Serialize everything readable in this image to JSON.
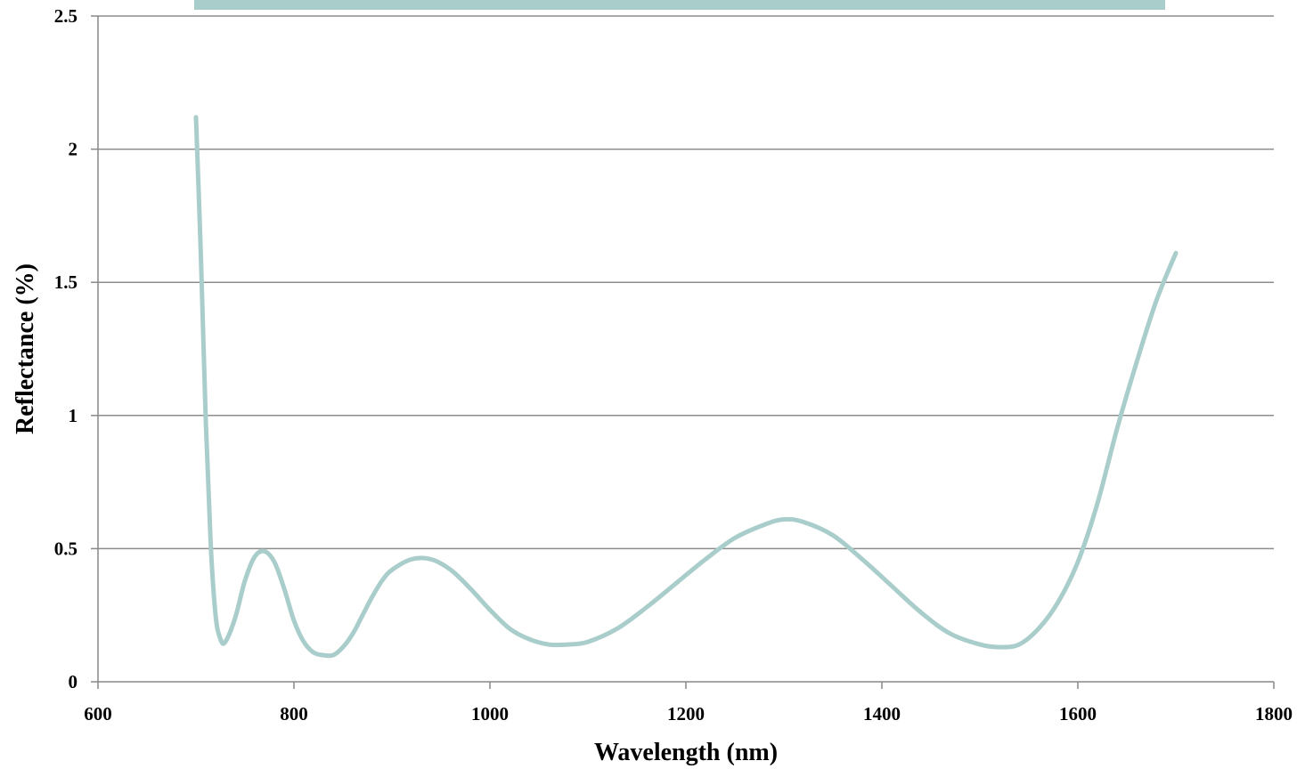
{
  "chart_data": {
    "type": "line",
    "title": "",
    "xlabel": "Wavelength (nm)",
    "ylabel": "Reflectance (%)",
    "xlim": [
      600,
      1800
    ],
    "ylim": [
      0,
      2.5
    ],
    "x_ticks": [
      "600",
      "800",
      "1000",
      "1200",
      "1400",
      "1600",
      "1800"
    ],
    "y_ticks": [
      "0",
      "0.5",
      "1",
      "1.5",
      "2",
      "2.5"
    ],
    "grid": "horizontal",
    "legend": "top band (no readable text)",
    "series": [
      {
        "color": "#a9cdcb",
        "x": [
          700,
          705,
          710,
          715,
          720,
          725,
          730,
          740,
          750,
          760,
          770,
          780,
          790,
          800,
          810,
          820,
          830,
          840,
          850,
          860,
          870,
          880,
          890,
          900,
          920,
          940,
          960,
          980,
          1000,
          1020,
          1040,
          1060,
          1080,
          1100,
          1130,
          1160,
          1190,
          1220,
          1250,
          1280,
          1300,
          1320,
          1350,
          1380,
          1410,
          1440,
          1470,
          1500,
          1520,
          1540,
          1560,
          1580,
          1600,
          1620,
          1640,
          1660,
          1680,
          1700
        ],
        "y": [
          2.12,
          1.6,
          0.98,
          0.52,
          0.25,
          0.16,
          0.15,
          0.24,
          0.38,
          0.47,
          0.49,
          0.45,
          0.35,
          0.23,
          0.15,
          0.11,
          0.1,
          0.1,
          0.13,
          0.18,
          0.25,
          0.32,
          0.38,
          0.42,
          0.46,
          0.46,
          0.42,
          0.35,
          0.27,
          0.2,
          0.16,
          0.14,
          0.14,
          0.15,
          0.2,
          0.28,
          0.37,
          0.46,
          0.54,
          0.59,
          0.61,
          0.6,
          0.55,
          0.46,
          0.36,
          0.26,
          0.18,
          0.14,
          0.13,
          0.14,
          0.2,
          0.3,
          0.45,
          0.67,
          0.95,
          1.2,
          1.43,
          1.61
        ]
      }
    ]
  }
}
